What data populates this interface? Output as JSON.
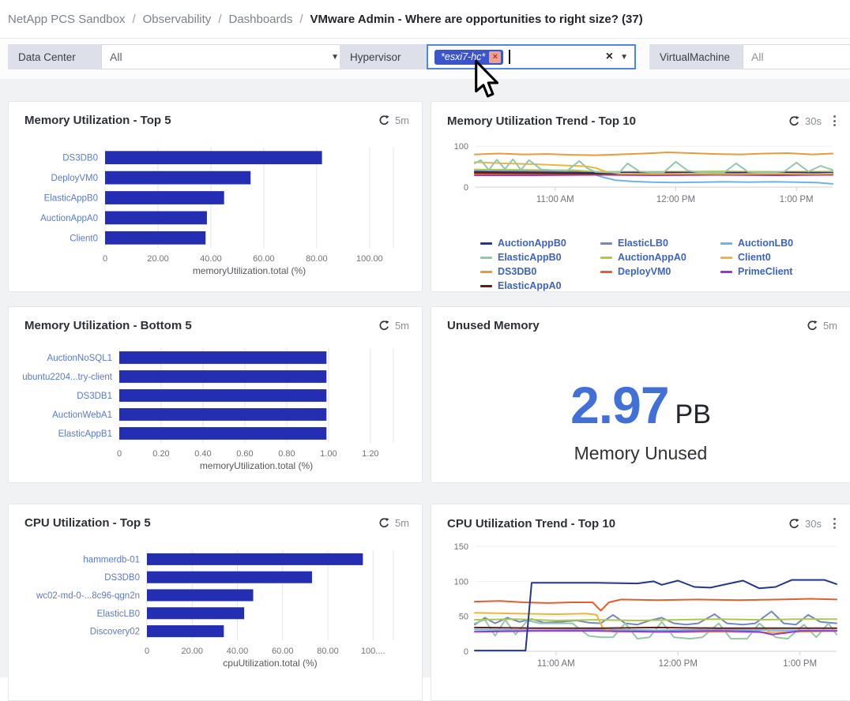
{
  "breadcrumb": {
    "separator": "/",
    "items": [
      {
        "label": "NetApp PCS Sandbox"
      },
      {
        "label": "Observability"
      },
      {
        "label": "Dashboards"
      }
    ],
    "current": "VMware Admin - Where are opportunities to right size? (37)"
  },
  "icons": {
    "dropdown": "▼",
    "clear": "×",
    "chip_remove": "×"
  },
  "filters": {
    "data_center": {
      "label": "Data Center",
      "value": "All"
    },
    "hypervisor": {
      "label": "Hypervisor",
      "chip": "*esxi7-hc*"
    },
    "virtual_machine": {
      "label": "VirtualMachine",
      "value": "All"
    }
  },
  "panels": {
    "mem_top5": {
      "title": "Memory Utilization - Top 5",
      "refresh": "5m"
    },
    "mem_trend": {
      "title": "Memory Utilization Trend - Top 10",
      "refresh": "30s"
    },
    "mem_bottom5": {
      "title": "Memory Utilization - Bottom 5",
      "refresh": "5m"
    },
    "unused_memory": {
      "title": "Unused Memory",
      "refresh": "5m",
      "value": "2.97",
      "unit": "PB",
      "caption": "Memory Unused"
    },
    "cpu_top5": {
      "title": "CPU Utilization - Top 5",
      "refresh": "5m"
    },
    "cpu_trend": {
      "title": "CPU Utilization Trend - Top 10",
      "refresh": "30s"
    }
  },
  "colors": {
    "bar": "#242eb2",
    "category_label": "#5b79cf",
    "accent_value": "#4170d6",
    "chip_bg": "#3c55cc",
    "chip_remove_bg": "#efa08e",
    "focus_border": "#4f86e0"
  },
  "chart_data": [
    {
      "id": "mem_top5",
      "type": "bar",
      "orientation": "horizontal",
      "title": "Memory Utilization - Top 5",
      "categories": [
        "DS3DB0",
        "DeployVM0",
        "ElasticAppB0",
        "AuctionAppA0",
        "Client0"
      ],
      "values": [
        82,
        55,
        45,
        38.5,
        38
      ],
      "bar_color": "#242eb2",
      "xlim": [
        0,
        109
      ],
      "xticks": [
        0,
        20,
        40,
        60,
        80,
        100
      ],
      "xtick_labels": [
        "0",
        "20.00",
        "40.00",
        "60.00",
        "80.00",
        "100.00"
      ],
      "xlabel": "memoryUtilization.total (%)"
    },
    {
      "id": "mem_bottom5",
      "type": "bar",
      "orientation": "horizontal",
      "title": "Memory Utilization - Bottom 5",
      "categories": [
        "AuctionNoSQL1",
        "ubuntu2204...try-client",
        "DS3DB1",
        "AuctionWebA1",
        "ElasticAppB1"
      ],
      "values": [
        0.99,
        0.99,
        0.99,
        0.99,
        0.99
      ],
      "bar_color": "#242eb2",
      "xlim": [
        0,
        1.31
      ],
      "xticks": [
        0,
        0.2,
        0.4,
        0.6,
        0.8,
        1.0,
        1.2
      ],
      "xtick_labels": [
        "0",
        "0.20",
        "0.40",
        "0.60",
        "0.80",
        "1.00",
        "1.20"
      ],
      "xlabel": "memoryUtilization.total (%)"
    },
    {
      "id": "cpu_top5",
      "type": "bar",
      "orientation": "horizontal",
      "title": "CPU Utilization - Top 5",
      "categories": [
        "hammerdb-01",
        "DS3DB0",
        "wc02-md-0-...8c96-qgn2n",
        "ElasticLB0",
        "Discovery02"
      ],
      "values": [
        95.5,
        73,
        47,
        43,
        34
      ],
      "bar_color": "#242eb2",
      "xlim": [
        0,
        109
      ],
      "xticks": [
        0,
        20,
        40,
        60,
        80,
        100
      ],
      "xtick_labels": [
        "0",
        "20.00",
        "40.00",
        "60.00",
        "80.00",
        "100...."
      ],
      "xlabel": "cpuUtilization.total (%)"
    },
    {
      "id": "mem_trend",
      "type": "line",
      "title": "Memory Utilization Trend - Top 10",
      "ylim": [
        0,
        112
      ],
      "yticks": [
        {
          "v": 0,
          "label": "0"
        },
        {
          "v": 100,
          "label": "100"
        }
      ],
      "xlim": [
        0,
        178
      ],
      "xticks": [
        {
          "pos": 40,
          "label": "11:00 AM"
        },
        {
          "pos": 100,
          "label": "12:00 PM"
        },
        {
          "pos": 160,
          "label": "1:00 PM"
        }
      ],
      "legend": [
        {
          "name": "AuctionAppB0",
          "color": "#23368f"
        },
        {
          "name": "ElasticLB0",
          "color": "#7189c4"
        },
        {
          "name": "AuctionLB0",
          "color": "#6fb3ea"
        },
        {
          "name": "ElasticAppB0",
          "color": "#94c7ab"
        },
        {
          "name": "AuctionAppA0",
          "color": "#abc94c"
        },
        {
          "name": "Client0",
          "color": "#eab63e"
        },
        {
          "name": "DS3DB0",
          "color": "#e79b3c"
        },
        {
          "name": "DeployVM0",
          "color": "#df5f33"
        },
        {
          "name": "PrimeClient",
          "color": "#9933d6"
        },
        {
          "name": "ElasticAppA0",
          "color": "#5f1f18"
        }
      ],
      "series": [
        {
          "name": "AuctionLB0",
          "color": "#6fb3ea",
          "x": [
            0,
            15,
            30,
            45,
            52,
            58,
            64,
            70,
            78,
            88,
            100,
            112,
            124,
            136,
            148,
            160,
            170,
            178
          ],
          "y": [
            40,
            40,
            41,
            40,
            39,
            33,
            24,
            17,
            14,
            12,
            11,
            12,
            13,
            12,
            13,
            12,
            11,
            8
          ]
        },
        {
          "name": "ElasticLB0",
          "color": "#7189c4",
          "x": [
            0,
            30,
            60,
            90,
            120,
            150,
            178
          ],
          "y": [
            40,
            39,
            37,
            37,
            38,
            37,
            37
          ]
        },
        {
          "name": "AuctionAppA0",
          "color": "#abc94c",
          "x": [
            0,
            25,
            50,
            60,
            90,
            120,
            150,
            178
          ],
          "y": [
            43,
            42,
            41,
            37,
            37,
            38,
            37,
            38
          ]
        },
        {
          "name": "AuctionAppB0",
          "color": "#23368f",
          "x": [
            0,
            30,
            60,
            90,
            120,
            150,
            178
          ],
          "y": [
            37,
            36,
            35,
            36,
            35,
            36,
            35
          ]
        },
        {
          "name": "PrimeClient",
          "color": "#9933d6",
          "x": [
            0,
            30,
            60,
            90,
            120,
            150,
            178
          ],
          "y": [
            29,
            29,
            30,
            29,
            30,
            29,
            30
          ]
        },
        {
          "name": "DeployVM0",
          "color": "#df5f33",
          "x": [
            0,
            30,
            60,
            90,
            120,
            150,
            178
          ],
          "y": [
            33,
            33,
            32,
            33,
            32,
            33,
            32
          ]
        },
        {
          "name": "ElasticAppA0",
          "color": "#5f1f18",
          "x": [
            0,
            30,
            60,
            90,
            120,
            150,
            178
          ],
          "y": [
            35,
            34,
            33,
            34,
            33,
            34,
            33
          ]
        },
        {
          "name": "Client0",
          "color": "#eab63e",
          "x": [
            0,
            15,
            30,
            45,
            55,
            60,
            65,
            72,
            90,
            110,
            130,
            150,
            170,
            178
          ],
          "y": [
            61,
            58,
            56,
            53,
            51,
            47,
            38,
            33,
            32,
            33,
            32,
            33,
            32,
            33
          ]
        },
        {
          "name": "ElasticAppB0",
          "color": "#94c7ab",
          "x": [
            0,
            3,
            7,
            11,
            15,
            19,
            23,
            27,
            33,
            40,
            46,
            52,
            56,
            60,
            66,
            72,
            76,
            82,
            88,
            94,
            100,
            106,
            112,
            118,
            124,
            130,
            136,
            142,
            148,
            154,
            160,
            166,
            172,
            178
          ],
          "y": [
            58,
            66,
            42,
            67,
            44,
            68,
            42,
            66,
            43,
            41,
            40,
            64,
            46,
            37,
            36,
            36,
            58,
            38,
            36,
            36,
            62,
            40,
            36,
            36,
            36,
            58,
            37,
            36,
            36,
            38,
            60,
            38,
            52,
            42
          ]
        },
        {
          "name": "DS3DB0",
          "color": "#e79b3c",
          "x": [
            0,
            12,
            24,
            36,
            48,
            60,
            72,
            84,
            96,
            108,
            120,
            132,
            144,
            156,
            168,
            178
          ],
          "y": [
            80,
            82,
            80,
            81,
            79,
            78,
            80,
            82,
            85,
            83,
            81,
            80,
            82,
            83,
            80,
            82
          ]
        }
      ]
    },
    {
      "id": "cpu_trend",
      "type": "line",
      "title": "CPU Utilization Trend - Top 10",
      "ylim": [
        0,
        158
      ],
      "yticks": [
        {
          "v": 0,
          "label": "0"
        },
        {
          "v": 50,
          "label": "50"
        },
        {
          "v": 100,
          "label": "100"
        },
        {
          "v": 150,
          "label": "150"
        }
      ],
      "xlim": [
        0,
        178
      ],
      "xticks": [
        {
          "pos": 40,
          "label": "11:00 AM"
        },
        {
          "pos": 100,
          "label": "12:00 PM"
        },
        {
          "pos": 160,
          "label": "1:00 PM"
        }
      ],
      "series": [
        {
          "color": "#6fb3ea",
          "x": [
            0,
            30,
            60,
            90,
            120,
            150,
            178
          ],
          "y": [
            31,
            30,
            31,
            30,
            31,
            30,
            30
          ]
        },
        {
          "color": "#7189c4",
          "x": [
            0,
            5,
            10,
            16,
            22,
            28,
            34,
            42,
            50,
            56,
            62,
            68,
            74,
            80,
            86,
            92,
            98,
            104,
            110,
            118,
            124,
            132,
            138,
            146,
            152,
            158,
            164,
            170,
            178
          ],
          "y": [
            38,
            48,
            40,
            48,
            42,
            46,
            41,
            42,
            44,
            41,
            40,
            52,
            40,
            38,
            44,
            48,
            40,
            38,
            40,
            53,
            40,
            38,
            40,
            57,
            40,
            38,
            52,
            42,
            40
          ]
        },
        {
          "color": "#94c7ab",
          "x": [
            0,
            5,
            10,
            15,
            20,
            26,
            32,
            40,
            48,
            56,
            62,
            68,
            74,
            80,
            86,
            92,
            98,
            106,
            112,
            120,
            126,
            134,
            140,
            148,
            154,
            162,
            168,
            174,
            178
          ],
          "y": [
            40,
            45,
            22,
            45,
            24,
            44,
            40,
            40,
            40,
            22,
            20,
            20,
            40,
            18,
            20,
            42,
            20,
            18,
            20,
            40,
            18,
            18,
            40,
            20,
            18,
            38,
            20,
            40,
            24
          ]
        },
        {
          "color": "#abc94c",
          "x": [
            0,
            20,
            40,
            60,
            80,
            100,
            120,
            140,
            160,
            178
          ],
          "y": [
            45,
            46,
            44,
            45,
            44,
            45,
            46,
            45,
            46,
            46
          ]
        },
        {
          "color": "#eab63e",
          "x": [
            0,
            20,
            40,
            55,
            60,
            63,
            68,
            80,
            100,
            120,
            140,
            160,
            178
          ],
          "y": [
            55,
            54,
            53,
            54,
            52,
            33,
            28,
            28,
            27,
            28,
            27,
            28,
            29
          ]
        },
        {
          "color": "#9933d6",
          "x": [
            0,
            30,
            60,
            90,
            120,
            140,
            146,
            152,
            160,
            178
          ],
          "y": [
            28,
            29,
            29,
            28,
            29,
            28,
            24,
            26,
            29,
            29
          ]
        },
        {
          "color": "#5f1f18",
          "x": [
            0,
            30,
            60,
            90,
            120,
            150,
            178
          ],
          "y": [
            34,
            33,
            33,
            34,
            33,
            33,
            33
          ]
        },
        {
          "color": "#df5f33",
          "x": [
            0,
            12,
            24,
            36,
            48,
            58,
            62,
            66,
            72,
            90,
            110,
            130,
            150,
            165,
            178
          ],
          "y": [
            71,
            72,
            70,
            69,
            70,
            70,
            58,
            70,
            74,
            73,
            74,
            73,
            74,
            75,
            74
          ]
        },
        {
          "color": "#23368f",
          "x": [
            0,
            10,
            20,
            25,
            28,
            40,
            60,
            80,
            88,
            92,
            100,
            108,
            116,
            124,
            132,
            140,
            148,
            156,
            164,
            172,
            178
          ],
          "y": [
            1,
            1,
            1,
            1,
            98,
            98,
            98,
            97,
            100,
            95,
            101,
            92,
            91,
            96,
            101,
            90,
            92,
            102,
            102,
            102,
            96
          ]
        }
      ]
    }
  ]
}
